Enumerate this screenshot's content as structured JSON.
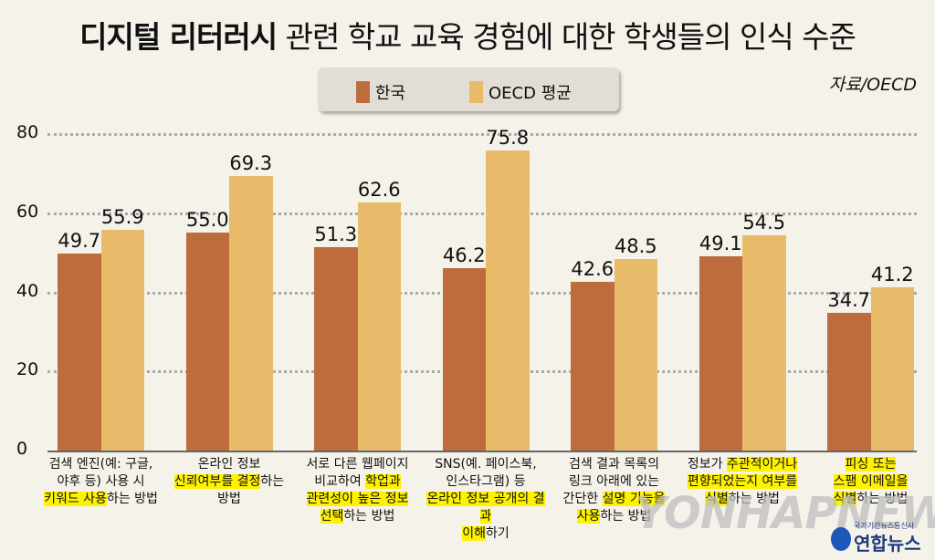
{
  "title": {
    "bold": "디지털 리터러시",
    "rest": " 관련 학교 교육 경험에 대한 학생들의 인식 수준"
  },
  "legend": {
    "korea": "한국",
    "oecd": "OECD 평균"
  },
  "source": "자료/OECD",
  "colors": {
    "korea": "#bd6c3e",
    "oecd": "#e8bb6a",
    "highlight": "#fff200",
    "background": "#f5f2ea"
  },
  "yticks": [
    "80",
    "60",
    "40",
    "20",
    "0"
  ],
  "values": {
    "korea": [
      "49.7",
      "55.0",
      "51.3",
      "46.2",
      "42.6",
      "49.1",
      "34.7"
    ],
    "oecd": [
      "55.9",
      "69.3",
      "62.6",
      "75.8",
      "48.5",
      "54.5",
      "41.2"
    ]
  },
  "categories": [
    {
      "lines": [
        [
          {
            "t": "검색 엔진(예: 구글,",
            "h": false
          }
        ],
        [
          {
            "t": "야후 등) 사용 시",
            "h": false
          }
        ],
        [
          {
            "t": "키워드 사용",
            "h": true
          },
          {
            "t": "하는 방법",
            "h": false
          }
        ]
      ]
    },
    {
      "lines": [
        [
          {
            "t": "온라인 정보",
            "h": false
          }
        ],
        [
          {
            "t": "신뢰여부를 결정",
            "h": true
          },
          {
            "t": "하는",
            "h": false
          }
        ],
        [
          {
            "t": "방법",
            "h": false
          }
        ]
      ]
    },
    {
      "lines": [
        [
          {
            "t": "서로 다른 웹페이지",
            "h": false
          }
        ],
        [
          {
            "t": "비교하여 ",
            "h": false
          },
          {
            "t": "학업과",
            "h": true
          }
        ],
        [
          {
            "t": "관련성이 높은 정보",
            "h": true
          }
        ],
        [
          {
            "t": "선택",
            "h": true
          },
          {
            "t": "하는 방법",
            "h": false
          }
        ]
      ]
    },
    {
      "lines": [
        [
          {
            "t": "SNS(예. 페이스북,",
            "h": false
          }
        ],
        [
          {
            "t": "인스타그램) 등",
            "h": false
          }
        ],
        [
          {
            "t": "온라인 정보 공개의 결과",
            "h": true
          }
        ],
        [
          {
            "t": "이해",
            "h": true
          },
          {
            "t": "하기",
            "h": false
          }
        ]
      ]
    },
    {
      "lines": [
        [
          {
            "t": "검색 결과 목록의",
            "h": false
          }
        ],
        [
          {
            "t": "링크 아래에 있는",
            "h": false
          }
        ],
        [
          {
            "t": "간단한 ",
            "h": false
          },
          {
            "t": "설명 기능을",
            "h": true
          }
        ],
        [
          {
            "t": "사용",
            "h": true
          },
          {
            "t": "하는 방법",
            "h": false
          }
        ]
      ]
    },
    {
      "lines": [
        [
          {
            "t": "정보가 ",
            "h": false
          },
          {
            "t": "주관적이거나",
            "h": true
          }
        ],
        [
          {
            "t": "편향되었는지 여부를",
            "h": true
          }
        ],
        [
          {
            "t": "식별",
            "h": true
          },
          {
            "t": "하는 방법",
            "h": false
          }
        ]
      ]
    },
    {
      "lines": [
        [
          {
            "t": "피싱 또는",
            "h": true
          }
        ],
        [
          {
            "t": "스팸 이메일을",
            "h": true
          }
        ],
        [
          {
            "t": "식별",
            "h": true
          },
          {
            "t": "하는 방법",
            "h": false
          }
        ]
      ]
    }
  ],
  "watermark": {
    "main": "YONHAPNEWS",
    "korean": "연합뉴스",
    "small": "국가기간뉴스통신사"
  },
  "chart_data": {
    "type": "bar",
    "title": "디지털 리터러시 관련 학교 교육 경험에 대한 학생들의 인식 수준",
    "source": "자료/OECD",
    "categories": [
      "검색 엔진(예: 구글, 야후 등) 사용 시 키워드 사용하는 방법",
      "온라인 정보 신뢰여부를 결정하는 방법",
      "서로 다른 웹페이지 비교하여 학업과 관련성이 높은 정보 선택하는 방법",
      "SNS(예. 페이스북, 인스타그램) 등 온라인 정보 공개의 결과 이해하기",
      "검색 결과 목록의 링크 아래에 있는 간단한 설명 기능을 사용하는 방법",
      "정보가 주관적이거나 편향되었는지 여부를 식별하는 방법",
      "피싱 또는 스팸 이메일을 식별하는 방법"
    ],
    "series": [
      {
        "name": "한국",
        "values": [
          49.7,
          55.0,
          51.3,
          46.2,
          42.6,
          49.1,
          34.7
        ],
        "color": "#bd6c3e"
      },
      {
        "name": "OECD 평균",
        "values": [
          55.9,
          69.3,
          62.6,
          75.8,
          48.5,
          54.5,
          41.2
        ],
        "color": "#e8bb6a"
      }
    ],
    "xlabel": "",
    "ylabel": "",
    "ylim": [
      0,
      80
    ],
    "yticks": [
      0,
      20,
      40,
      60,
      80
    ],
    "grid": true,
    "legend_position": "top-center"
  }
}
